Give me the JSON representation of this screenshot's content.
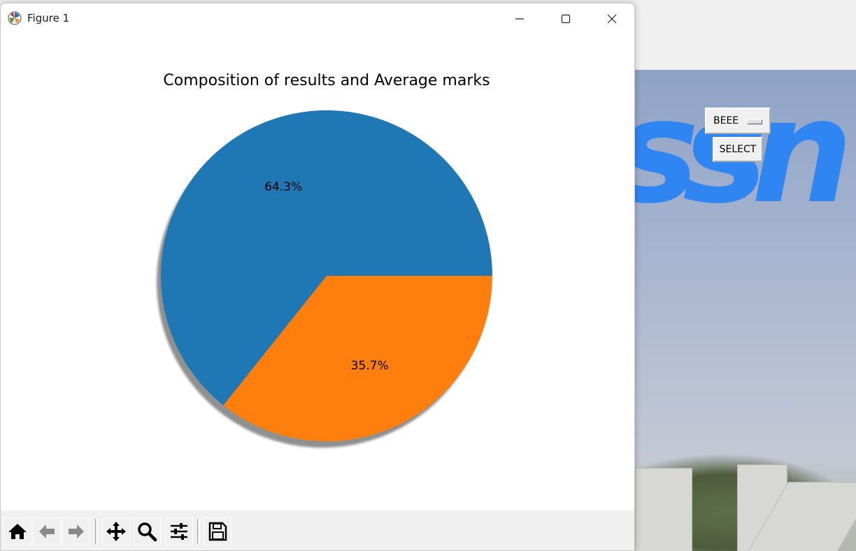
{
  "window": {
    "title": "Figure 1",
    "controls": {
      "minimize": "minimize",
      "maximize": "maximize",
      "close": "close"
    }
  },
  "toolbar": {
    "buttons": [
      "home-icon",
      "back-arrow-icon",
      "forward-arrow-icon",
      "pan-icon",
      "zoom-icon",
      "configure-subplots-icon",
      "save-icon"
    ]
  },
  "background_app": {
    "dropdown_value": "BEEE",
    "select_label": "SELECT",
    "logo_text": "ssn"
  },
  "chart_data": {
    "type": "pie",
    "title": "Composition of results and Average marks",
    "slices": [
      {
        "value": 64.3,
        "label": "64.3%",
        "color": "#1f77b4"
      },
      {
        "value": 35.7,
        "label": "35.7%",
        "color": "#ff7f0e"
      }
    ],
    "start_angle_deg": 0,
    "shadow": true,
    "legend": "none"
  }
}
